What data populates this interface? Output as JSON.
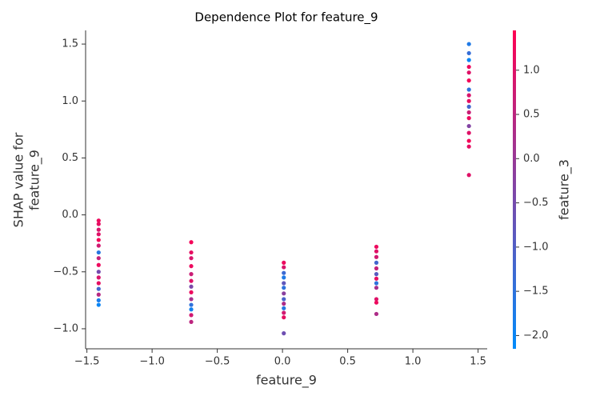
{
  "chart_data": {
    "type": "scatter",
    "title": "Dependence Plot for feature_9",
    "xlabel": "feature_9",
    "ylabel": [
      "SHAP value for",
      "feature_9"
    ],
    "xlim": [
      -1.51,
      1.57
    ],
    "ylim": [
      -1.176,
      1.62
    ],
    "xticks": [
      {
        "value": -1.5,
        "label": "−1.5"
      },
      {
        "value": -1.0,
        "label": "−1.0"
      },
      {
        "value": -0.5,
        "label": "−0.5"
      },
      {
        "value": 0.0,
        "label": "0.0"
      },
      0.5,
      {
        "value": 1.0,
        "label": "1.0"
      },
      1.5
    ],
    "yticks": [
      {
        "value": -1.0,
        "label": "−1.0"
      },
      {
        "value": -0.5,
        "label": "−0.5"
      },
      {
        "value": 0.0,
        "label": "0.0"
      },
      0.5,
      {
        "value": 1.0,
        "label": "1.0"
      },
      1.5
    ],
    "colormap": [
      "#008bfb",
      "#ff0052"
    ],
    "colorbar": {
      "label": "feature_3",
      "lim": [
        -2.15,
        1.45
      ],
      "ticks": [
        {
          "value": -2.0,
          "label": "−2.0"
        },
        {
          "value": -1.5,
          "label": "−1.5"
        },
        {
          "value": -1.0,
          "label": "−1.0"
        },
        {
          "value": -0.5,
          "label": "−0.5"
        },
        {
          "value": 0.0,
          "label": "0.0"
        },
        0.5,
        {
          "value": 1.0,
          "label": "1.0"
        }
      ]
    },
    "x": [
      -1.41,
      -1.41,
      -1.41,
      -1.41,
      -1.41,
      -1.41,
      -1.41,
      -1.41,
      -1.41,
      -1.41,
      -1.41,
      -1.41,
      -1.41,
      -1.41,
      -1.41,
      -1.41,
      -0.7,
      -0.7,
      -0.7,
      -0.7,
      -0.7,
      -0.7,
      -0.7,
      -0.7,
      -0.7,
      -0.7,
      -0.7,
      -0.7,
      -0.7,
      0.01,
      0.01,
      0.01,
      0.01,
      0.01,
      0.01,
      0.01,
      0.01,
      0.01,
      0.01,
      0.01,
      0.01,
      0.01,
      0.72,
      0.72,
      0.72,
      0.72,
      0.72,
      0.72,
      0.72,
      0.72,
      0.72,
      0.72,
      0.72,
      0.72,
      1.43,
      1.43,
      1.43,
      1.43,
      1.43,
      1.43,
      1.43,
      1.43,
      1.43,
      1.43,
      1.43,
      1.43,
      1.43,
      1.43,
      1.43,
      1.43,
      1.43
    ],
    "values": [
      -0.05,
      -0.08,
      -0.13,
      -0.17,
      -0.22,
      -0.27,
      -0.33,
      -0.38,
      -0.44,
      -0.5,
      -0.55,
      -0.6,
      -0.65,
      -0.7,
      -0.75,
      -0.79,
      -0.24,
      -0.33,
      -0.38,
      -0.45,
      -0.52,
      -0.58,
      -0.63,
      -0.68,
      -0.74,
      -0.79,
      -0.83,
      -0.88,
      -0.94,
      -0.42,
      -0.46,
      -0.51,
      -0.55,
      -0.6,
      -0.64,
      -0.69,
      -0.74,
      -0.78,
      -0.82,
      -0.86,
      -0.9,
      -1.04,
      -0.28,
      -0.32,
      -0.37,
      -0.42,
      -0.47,
      -0.52,
      -0.56,
      -0.6,
      -0.64,
      -0.74,
      -0.77,
      -0.87,
      1.5,
      1.42,
      1.36,
      1.3,
      1.25,
      1.18,
      1.1,
      1.05,
      1.0,
      0.95,
      0.9,
      0.85,
      0.78,
      0.72,
      0.65,
      0.6,
      0.35
    ],
    "color_values": [
      1.2,
      1.1,
      0.9,
      1.0,
      1.3,
      0.8,
      -1.6,
      0.6,
      1.2,
      -0.5,
      0.9,
      1.1,
      -1.2,
      0.4,
      -1.8,
      -2.0,
      1.3,
      1.1,
      0.9,
      1.2,
      0.7,
      1.0,
      -0.4,
      1.2,
      0.2,
      -1.5,
      -1.9,
      0.8,
      0.5,
      1.2,
      0.9,
      -1.3,
      -1.7,
      -0.8,
      -1.5,
      -0.2,
      -1.1,
      0.3,
      -1.6,
      0.8,
      1.1,
      -0.6,
      1.2,
      1.0,
      0.8,
      -1.2,
      0.6,
      -0.9,
      1.1,
      -1.5,
      0.2,
      1.0,
      1.2,
      0.3,
      -1.7,
      -1.4,
      -2.0,
      1.2,
      1.0,
      1.3,
      -1.5,
      0.9,
      1.1,
      -1.2,
      0.7,
      1.2,
      -0.3,
      1.0,
      1.3,
      1.1,
      1.0
    ]
  }
}
